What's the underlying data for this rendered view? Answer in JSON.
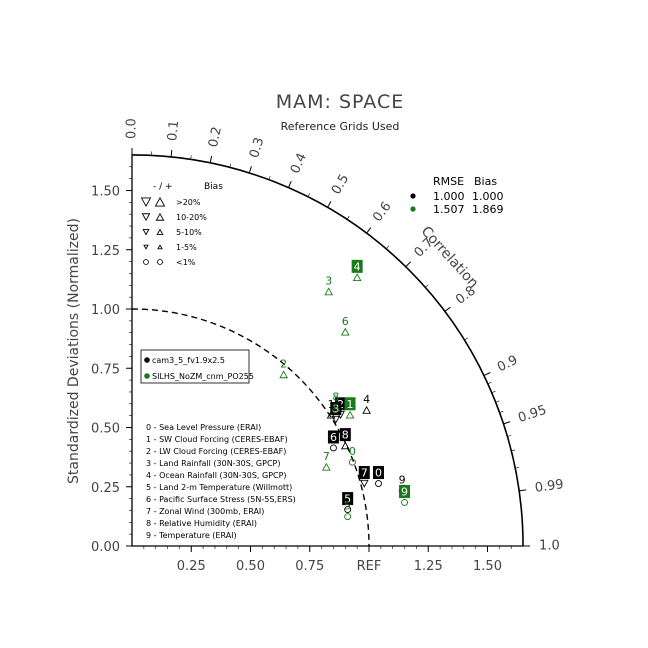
{
  "chart_data": {
    "type": "scatter",
    "diagram": "taylor",
    "title": "MAM: SPACE",
    "subtitle": "Reference Grids Used",
    "ylabel": "Standardized Deviations (Normalized)",
    "arc_label": "Correlation",
    "ref_label": "REF",
    "std_ticks": [
      "0.00",
      "0.25",
      "0.50",
      "0.75",
      "1.00",
      "1.25",
      "1.50"
    ],
    "std_values": [
      0,
      0.25,
      0.5,
      0.75,
      1.0,
      1.25,
      1.5
    ],
    "x_ticks": [
      "0.25",
      "0.50",
      "0.75",
      "REF",
      "1.25",
      "1.50"
    ],
    "x_values": [
      0.25,
      0.5,
      0.75,
      1.0,
      1.25,
      1.5
    ],
    "corr_ticks": [
      "0.0",
      "0.1",
      "0.2",
      "0.3",
      "0.4",
      "0.5",
      "0.6",
      "0.7",
      "0.8",
      "0.9",
      "0.95",
      "0.99",
      "1.0"
    ],
    "corr_values": [
      0.0,
      0.1,
      0.2,
      0.3,
      0.4,
      0.5,
      0.6,
      0.7,
      0.8,
      0.9,
      0.95,
      0.99,
      1.0
    ],
    "max_std": 1.65,
    "bias_legend": {
      "header_sign": "- / +",
      "header_label": "Bias",
      "rows": [
        {
          "label": ">20%",
          "shape": "triangle",
          "size": 4.5
        },
        {
          "label": "10-20%",
          "shape": "triangle",
          "size": 3.6
        },
        {
          "label": "5-10%",
          "shape": "triangle",
          "size": 2.8
        },
        {
          "label": "1-5%",
          "shape": "triangle",
          "size": 2.0
        },
        {
          "label": "<1%",
          "shape": "circle",
          "size": 2.5
        }
      ]
    },
    "stats": {
      "header_rmse": "RMSE",
      "header_bias": "Bias",
      "rows": [
        {
          "rmse": "1.000",
          "bias": "1.000",
          "color": "#000000"
        },
        {
          "rmse": "1.507",
          "bias": "1.869",
          "color": "#1a7a1a"
        }
      ]
    },
    "series": [
      {
        "name": "cam3_5_fv1.9x2.5",
        "color": "#000000",
        "points": [
          {
            "id": "0",
            "x": 1.04,
            "y": 0.31,
            "boxed": true,
            "sym": "circle",
            "dir": "up"
          },
          {
            "id": "1",
            "x": 0.84,
            "y": 0.6,
            "boxed": false,
            "sym": "tri",
            "dir": "up"
          },
          {
            "id": "2",
            "x": 0.88,
            "y": 0.6,
            "boxed": true,
            "sym": "tri",
            "dir": "down"
          },
          {
            "id": "3",
            "x": 0.86,
            "y": 0.58,
            "boxed": true,
            "sym": "tri",
            "dir": "down"
          },
          {
            "id": "4",
            "x": 0.99,
            "y": 0.62,
            "boxed": false,
            "sym": "tri",
            "dir": "up"
          },
          {
            "id": "5",
            "x": 0.91,
            "y": 0.2,
            "boxed": true,
            "sym": "circle",
            "dir": "up"
          },
          {
            "id": "6",
            "x": 0.85,
            "y": 0.46,
            "boxed": true,
            "sym": "circle",
            "dir": "up"
          },
          {
            "id": "7",
            "x": 0.98,
            "y": 0.31,
            "boxed": true,
            "sym": "tri",
            "dir": "down"
          },
          {
            "id": "8",
            "x": 0.9,
            "y": 0.47,
            "boxed": true,
            "sym": "tri",
            "dir": "up"
          },
          {
            "id": "9",
            "x": 1.14,
            "y": 0.28,
            "boxed": false,
            "sym": "circle",
            "dir": "up"
          }
        ]
      },
      {
        "name": "SILHS_NoZM_cnm_PO255",
        "color": "#1a7a1a",
        "points": [
          {
            "id": "0",
            "x": 0.93,
            "y": 0.4,
            "boxed": false,
            "sym": "circle",
            "dir": "up"
          },
          {
            "id": "1",
            "x": 0.92,
            "y": 0.6,
            "boxed": true,
            "sym": "tri",
            "dir": "up"
          },
          {
            "id": "2",
            "x": 0.64,
            "y": 0.77,
            "boxed": false,
            "sym": "tri",
            "dir": "up"
          },
          {
            "id": "3",
            "x": 0.83,
            "y": 1.12,
            "boxed": false,
            "sym": "tri",
            "dir": "up"
          },
          {
            "id": "4",
            "x": 0.95,
            "y": 1.18,
            "boxed": true,
            "sym": "tri",
            "dir": "up"
          },
          {
            "id": "5",
            "x": 0.91,
            "y": 0.17,
            "boxed": false,
            "sym": "circle",
            "dir": "up"
          },
          {
            "id": "6",
            "x": 0.9,
            "y": 0.95,
            "boxed": false,
            "sym": "tri",
            "dir": "up"
          },
          {
            "id": "7",
            "x": 0.82,
            "y": 0.38,
            "boxed": false,
            "sym": "tri",
            "dir": "up"
          },
          {
            "id": "8",
            "x": 0.86,
            "y": 0.63,
            "boxed": false,
            "sym": "tri",
            "dir": "up"
          },
          {
            "id": "9",
            "x": 1.15,
            "y": 0.23,
            "boxed": true,
            "sym": "circle",
            "dir": "up"
          }
        ]
      }
    ],
    "var_legend": [
      "0 - Sea Level Pressure (ERAI)",
      "1 - SW Cloud Forcing (CERES-EBAF)",
      "2 - LW Cloud Forcing (CERES-EBAF)",
      "3 - Land Rainfall (30N-30S, GPCP)",
      "4 - Ocean Rainfall (30N-30S, GPCP)",
      "5 - Land 2-m Temperature (Willmott)",
      "6 - Pacific Surface Stress (5N-5S,ERS)",
      "7 - Zonal Wind (300mb, ERAI)",
      "8 - Relative Humidity (ERAI)",
      "9 - Temperature (ERAI)"
    ]
  }
}
